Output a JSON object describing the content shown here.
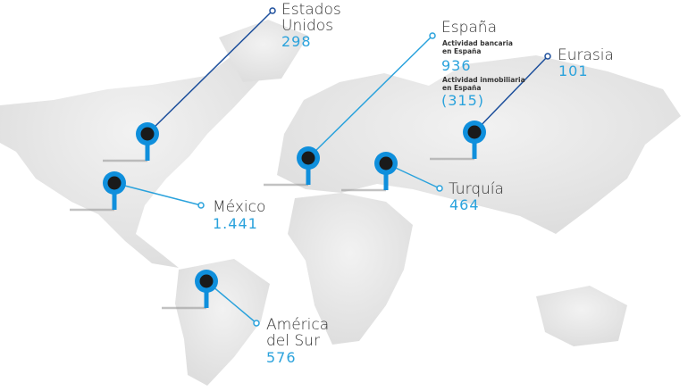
{
  "colors": {
    "land": "#e4e4e4",
    "pin": "#0f8fdc",
    "pin_center": "#1a1a1a",
    "line_dark": "#1d4f9c",
    "line_light": "#2aa2dc",
    "value": "#2aa2dc",
    "label": "#333333"
  },
  "regions": {
    "usa": {
      "name_line1": "Estados",
      "name_line2": "Unidos",
      "value": "298"
    },
    "mexico": {
      "name": "México",
      "value": "1.441"
    },
    "spain": {
      "name": "España",
      "banking_label_line1": "Actividad bancaria",
      "banking_label_line2": "en España",
      "banking_value": "936",
      "realestate_label_line1": "Actividad inmobiliaria",
      "realestate_label_line2": "en España",
      "realestate_value": "(315)"
    },
    "eurasia": {
      "name": "Eurasia",
      "value": "101"
    },
    "turkey": {
      "name": "Turquía",
      "value": "464"
    },
    "south_america": {
      "name_line1": "América",
      "name_line2": "del Sur",
      "value": "576"
    }
  }
}
